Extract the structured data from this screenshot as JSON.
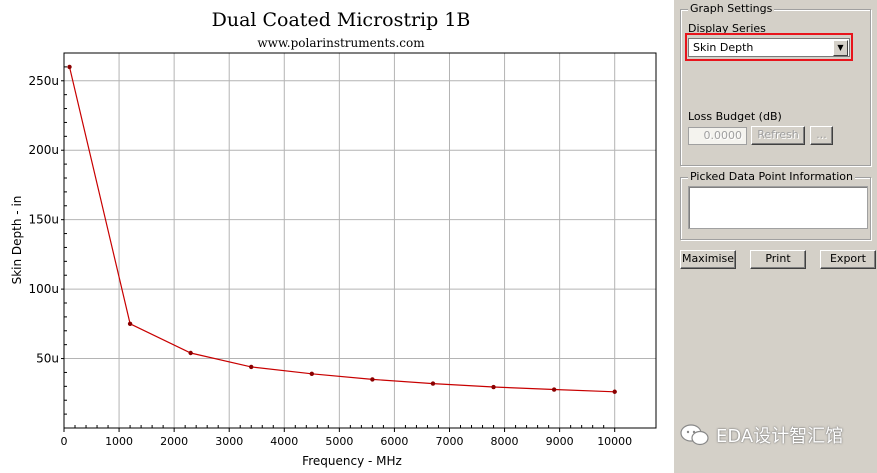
{
  "chart_data": {
    "type": "line",
    "title": "Dual Coated Microstrip 1B",
    "subtitle": "www.polarinstruments.com",
    "xlabel": "Frequency - MHz",
    "ylabel": "Skin Depth - in",
    "xlim": [
      0,
      10750
    ],
    "ylim": [
      0,
      270
    ],
    "x_ticks": [
      0,
      1000,
      2000,
      3000,
      4000,
      5000,
      6000,
      7000,
      8000,
      9000,
      10000
    ],
    "x_tick_labels": [
      "0",
      "1000",
      "2000",
      "3000",
      "4000",
      "5000",
      "6000",
      "7000",
      "8000",
      "9000",
      "10000"
    ],
    "y_ticks": [
      50,
      100,
      150,
      200,
      250
    ],
    "y_tick_labels": [
      "50u",
      "100u",
      "150u",
      "200u",
      "250u"
    ],
    "grid": true,
    "series": [
      {
        "name": "Skin Depth",
        "color": "#c80000",
        "x": [
          100,
          1200,
          2300,
          3400,
          4500,
          5600,
          6700,
          7800,
          8900,
          10000
        ],
        "values": [
          260,
          75,
          54,
          44,
          39,
          35,
          32,
          29.5,
          27.7,
          26.1
        ]
      }
    ]
  },
  "settings": {
    "group_title": "Graph Settings",
    "display_series_label": "Display Series",
    "display_series_value": "Skin Depth",
    "loss_budget_label": "Loss Budget (dB)",
    "loss_budget_value": "0.0000",
    "refresh_label": "Refresh",
    "ellipsis_label": "..."
  },
  "picked": {
    "group_title": "Picked Data Point Information",
    "content": ""
  },
  "buttons": {
    "maximise": "Maximise",
    "print": "Print",
    "export": "Export"
  },
  "watermark": {
    "text": "EDA设计智汇馆"
  },
  "colors": {
    "series": "#c80000",
    "highlight": "#e8141c",
    "panel": "#d4d0c8"
  }
}
